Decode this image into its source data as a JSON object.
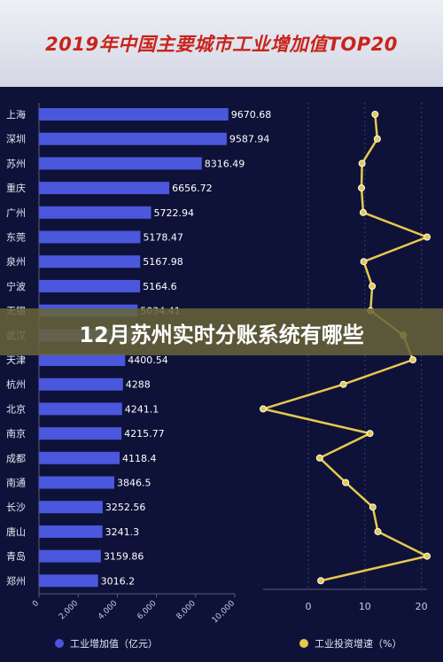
{
  "title": "2019年中国主要城市工业增加值TOP20",
  "banner": "12月苏州实时分账系统有哪些",
  "chart_data": [
    {
      "type": "bar",
      "orientation": "horizontal",
      "categories": [
        "上海",
        "深圳",
        "苏州",
        "重庆",
        "广州",
        "东莞",
        "泉州",
        "宁波",
        "无锡",
        "武汉",
        "天津",
        "杭州",
        "北京",
        "南京",
        "成都",
        "南通",
        "长沙",
        "唐山",
        "青岛",
        "郑州"
      ],
      "values": [
        9670.68,
        9587.94,
        8316.49,
        6656.72,
        5722.94,
        5178.47,
        5167.98,
        5164.6,
        5034.41,
        4900,
        4400.54,
        4288,
        4241.1,
        4215.77,
        4118.4,
        3846.5,
        3252.56,
        3241.3,
        3159.86,
        3016.2
      ],
      "value_labels": [
        "9670.68",
        "9587.94",
        "8316.49",
        "6656.72",
        "5722.94",
        "5178.47",
        "5167.98",
        "5164.6",
        "5034.41",
        "",
        "4400.54",
        "4288",
        "4241.1",
        "4215.77",
        "4118.4",
        "3846.5",
        "3252.56",
        "3241.3",
        "3159.86",
        "3016.2"
      ],
      "xlim": [
        0,
        10000
      ],
      "xticks": [
        "0",
        "2,000",
        "4,000",
        "6,000",
        "8,000",
        "10,000"
      ],
      "legend": "工业增加值（亿元）",
      "color": "#4b57dc"
    },
    {
      "type": "line",
      "orientation": "vertical",
      "categories": [
        "上海",
        "深圳",
        "苏州",
        "重庆",
        "广州",
        "东莞",
        "泉州",
        "宁波",
        "无锡",
        "武汉",
        "天津",
        "杭州",
        "北京",
        "南京",
        "成都",
        "南通",
        "长沙",
        "唐山",
        "青岛",
        "郑州"
      ],
      "values": [
        11.8,
        12.2,
        9.5,
        9.4,
        9.7,
        21,
        9.8,
        11.3,
        11,
        16.8,
        18.5,
        6.2,
        -8,
        10.9,
        2,
        6.6,
        11.4,
        12.3,
        21,
        2.2
      ],
      "xlim": [
        -8,
        21
      ],
      "xticks": [
        0,
        10,
        20
      ],
      "grid": true,
      "legend": "工业投资增速（%）",
      "color": "#e6c84f"
    }
  ]
}
